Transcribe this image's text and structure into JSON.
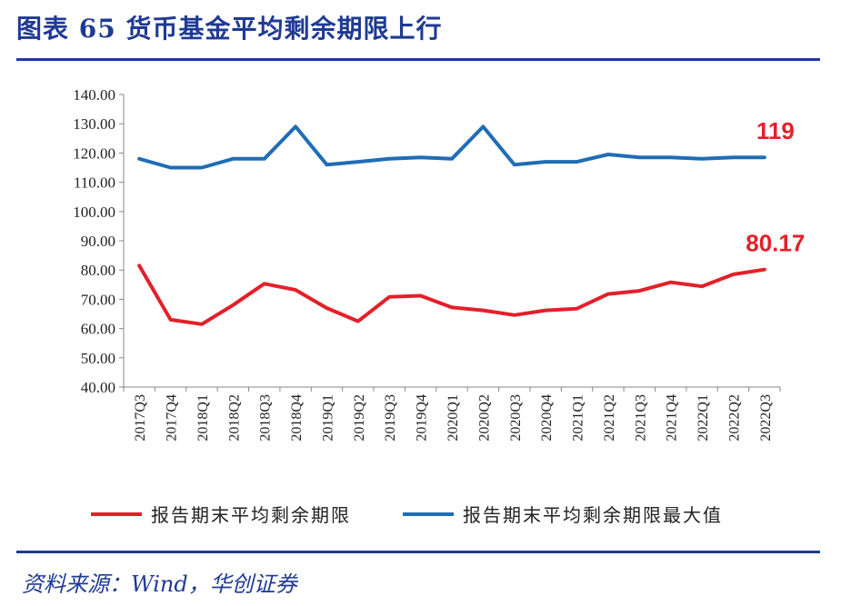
{
  "figure": {
    "title": "图表 65  货币基金平均剩余期限上行",
    "source": "资料来源：Wind，华创证券"
  },
  "chart_data": {
    "type": "line",
    "title": "",
    "xlabel": "",
    "ylabel": "",
    "ylim": [
      40,
      140
    ],
    "yticks": [
      "40.00",
      "50.00",
      "60.00",
      "70.00",
      "80.00",
      "90.00",
      "100.00",
      "110.00",
      "120.00",
      "130.00",
      "140.00"
    ],
    "categories": [
      "2017Q3",
      "2017Q4",
      "2018Q1",
      "2018Q2",
      "2018Q3",
      "2018Q4",
      "2019Q1",
      "2019Q2",
      "2019Q3",
      "2019Q4",
      "2020Q1",
      "2020Q2",
      "2020Q3",
      "2020Q4",
      "2021Q1",
      "2021Q2",
      "2021Q3",
      "2021Q4",
      "2022Q1",
      "2022Q2",
      "2022Q3"
    ],
    "series": [
      {
        "name": "报告期末平均剩余期限",
        "color": "#e3202a",
        "values": [
          81.5,
          63,
          61.5,
          68,
          75.3,
          73.2,
          67,
          62.5,
          70.8,
          71.2,
          67.2,
          66.2,
          64.6,
          66.2,
          66.8,
          71.8,
          72.9,
          75.8,
          74.4,
          78.5,
          80.17
        ],
        "end_label": "80.17"
      },
      {
        "name": "报告期末平均剩余期限最大值",
        "color": "#1f6db5",
        "values": [
          118,
          115,
          115,
          118,
          118,
          129,
          116,
          117,
          118,
          118.5,
          118,
          129,
          116,
          117,
          117,
          119.5,
          118.5,
          118.5,
          118,
          118.5,
          118.5
        ],
        "end_label": "119"
      }
    ],
    "legend_position": "bottom"
  }
}
